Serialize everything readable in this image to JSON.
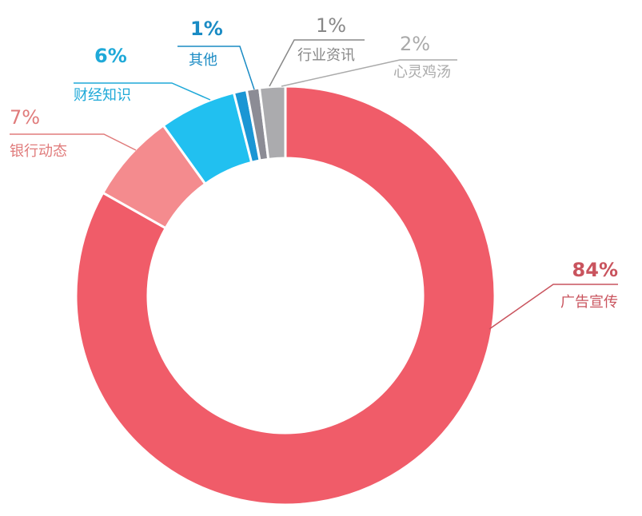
{
  "chart_data": {
    "type": "pie",
    "variant": "donut",
    "title": "",
    "start": "12 o'clock",
    "direction": "clockwise",
    "slices": [
      {
        "label": "广告宣传",
        "value": 84,
        "value_label": "84%",
        "color": "#F05C69",
        "label_color": "#C9545E",
        "pct_bold": true,
        "label_side": "right"
      },
      {
        "label": "银行动态",
        "value": 7,
        "value_label": "7%",
        "color": "#F48B8E",
        "label_color": "#E07B7B",
        "pct_bold": false,
        "label_side": "left"
      },
      {
        "label": "财经知识",
        "value": 6,
        "value_label": "6%",
        "color": "#21C0F0",
        "label_color": "#1FA9D8",
        "pct_bold": true,
        "label_side": "left"
      },
      {
        "label": "其他",
        "value": 1,
        "value_label": "1%",
        "color": "#1B96D4",
        "label_color": "#1A8BC4",
        "pct_bold": true,
        "label_side": "left"
      },
      {
        "label": "行业资讯",
        "value": 1,
        "value_label": "1%",
        "color": "#8C8C95",
        "label_color": "#888888",
        "pct_bold": false,
        "label_side": "right"
      },
      {
        "label": "心灵鸡汤",
        "value": 2,
        "value_label": "2%",
        "color": "#ABABAE",
        "label_color": "#AAAAAA",
        "pct_bold": false,
        "label_side": "right"
      }
    ],
    "legend": "none"
  }
}
